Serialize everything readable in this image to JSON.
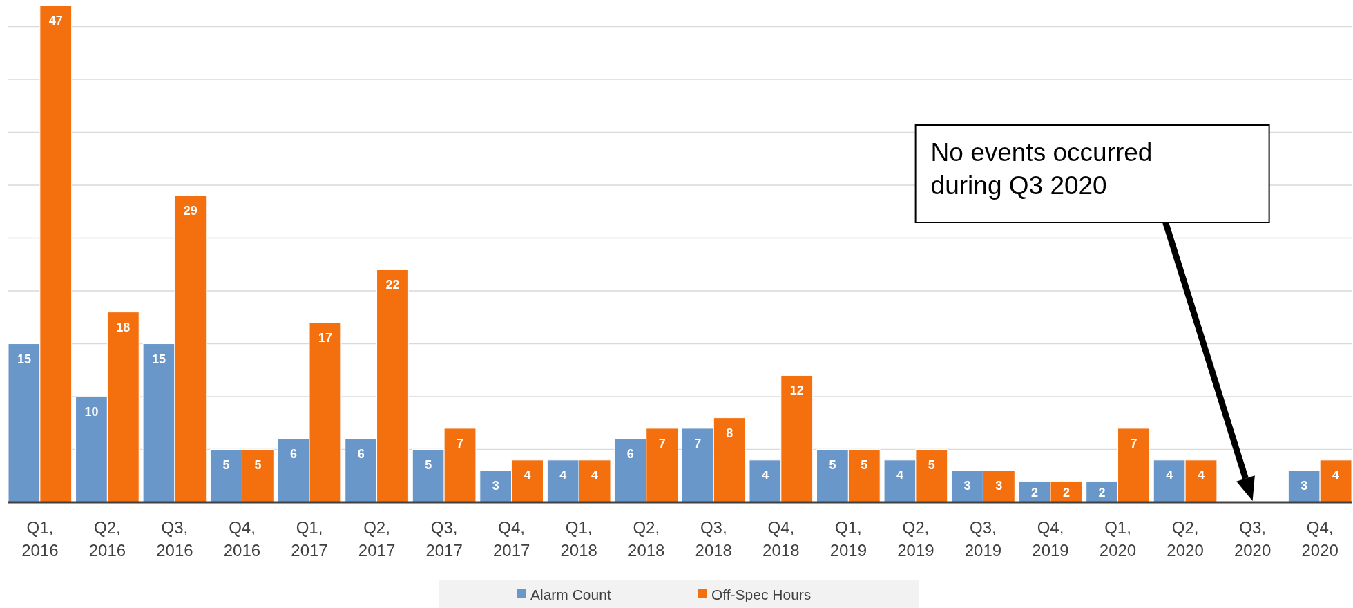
{
  "chart_data": {
    "type": "bar",
    "categories": [
      "Q1, 2016",
      "Q2, 2016",
      "Q3, 2016",
      "Q4, 2016",
      "Q1, 2017",
      "Q2, 2017",
      "Q3, 2017",
      "Q4, 2017",
      "Q1, 2018",
      "Q2, 2018",
      "Q3, 2018",
      "Q4, 2018",
      "Q1, 2019",
      "Q2, 2019",
      "Q3, 2019",
      "Q4, 2019",
      "Q1, 2020",
      "Q2, 2020",
      "Q3, 2020",
      "Q4, 2020"
    ],
    "series": [
      {
        "name": "Alarm Count",
        "color": "#6a97c9",
        "values": [
          15,
          10,
          15,
          5,
          6,
          6,
          5,
          3,
          4,
          6,
          7,
          4,
          5,
          4,
          3,
          2,
          2,
          4,
          null,
          3
        ]
      },
      {
        "name": "Off-Spec Hours",
        "color": "#f4700f",
        "values": [
          47,
          18,
          29,
          5,
          17,
          22,
          7,
          4,
          4,
          7,
          8,
          12,
          5,
          5,
          3,
          2,
          7,
          4,
          null,
          4
        ]
      }
    ],
    "ylim": [
      0,
      47
    ],
    "yticks": [
      {
        "value": 0,
        "label": null
      },
      {
        "value": 5,
        "label": null
      },
      {
        "value": 10,
        "label": null
      },
      {
        "value": 15,
        "label": null
      },
      {
        "value": 20,
        "label": null
      },
      {
        "value": 25,
        "label": null
      },
      {
        "value": 30,
        "label": null
      },
      {
        "value": 35,
        "label": null
      },
      {
        "value": 40,
        "label": null
      },
      {
        "value": 45,
        "label": null
      }
    ],
    "tick_labels": "x",
    "grid": "y",
    "data_labels": true,
    "legend": "bottom",
    "annotations": [
      "No events occurred during Q3 2020"
    ]
  }
}
